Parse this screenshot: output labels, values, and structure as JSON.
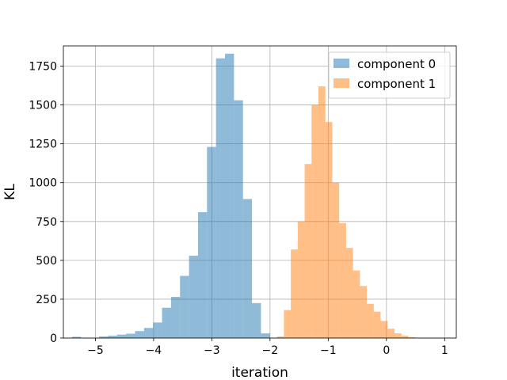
{
  "chart_data": {
    "type": "bar",
    "title": "",
    "xlabel": "iteration",
    "ylabel": "KL",
    "xlim": [
      -5.55,
      1.2
    ],
    "ylim": [
      0,
      1880
    ],
    "xticks": [
      -5,
      -4,
      -3,
      -2,
      -1,
      0,
      1
    ],
    "xtick_labels": [
      "−5",
      "−4",
      "−3",
      "−2",
      "−1",
      "0",
      "1"
    ],
    "yticks": [
      0,
      250,
      500,
      750,
      1000,
      1250,
      1500,
      1750
    ],
    "ytick_labels": [
      "0",
      "250",
      "500",
      "750",
      "1000",
      "1250",
      "1500",
      "1750"
    ],
    "grid": true,
    "legend_position": "top-right",
    "series": [
      {
        "name": "component 0",
        "color": "#1f77b4",
        "alpha": 0.5,
        "bin_start": -5.4,
        "bin_width": 0.1545,
        "values": [
          8,
          0,
          0,
          10,
          15,
          22,
          28,
          45,
          65,
          100,
          195,
          265,
          400,
          530,
          810,
          1230,
          1800,
          1830,
          1530,
          895,
          225,
          30
        ]
      },
      {
        "name": "component 1",
        "color": "#ff7f0e",
        "alpha": 0.5,
        "bin_start": -1.88,
        "bin_width": 0.1187,
        "values": [
          10,
          180,
          570,
          750,
          1120,
          1500,
          1620,
          1390,
          1000,
          740,
          580,
          435,
          335,
          220,
          170,
          110,
          60,
          30,
          15,
          6,
          2
        ]
      }
    ]
  }
}
